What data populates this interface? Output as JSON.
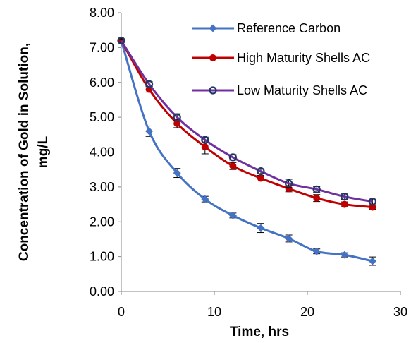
{
  "chart_data": {
    "type": "line",
    "title": "",
    "xlabel": "Time, hrs",
    "ylabel_lines": [
      "Concentration of Gold in Solution,",
      "mg/L"
    ],
    "xlim": [
      0,
      30
    ],
    "ylim": [
      0,
      8
    ],
    "xticks": [
      0,
      10,
      20,
      30
    ],
    "yticks": [
      0,
      1,
      2,
      3,
      4,
      5,
      6,
      7,
      8
    ],
    "ytick_labels": [
      "0.00",
      "1.00",
      "2.00",
      "3.00",
      "4.00",
      "5.00",
      "6.00",
      "7.00",
      "8.00"
    ],
    "grid": false,
    "legend_position": "top-right",
    "x": [
      0,
      3,
      6,
      9,
      12,
      15,
      18,
      21,
      24,
      27
    ],
    "series": [
      {
        "name": "Reference Carbon",
        "color": "#4472C4",
        "marker": "diamond",
        "values": [
          7.2,
          4.6,
          3.4,
          2.65,
          2.18,
          1.82,
          1.52,
          1.15,
          1.05,
          0.87
        ],
        "errors": [
          0.05,
          0.15,
          0.13,
          0.08,
          0.07,
          0.13,
          0.1,
          0.07,
          0.06,
          0.12
        ]
      },
      {
        "name": "High Maturity Shells AC",
        "color": "#C00000",
        "marker": "circle",
        "values": [
          7.2,
          5.8,
          4.82,
          4.15,
          3.6,
          3.25,
          2.95,
          2.68,
          2.5,
          2.42
        ],
        "errors": [
          0.05,
          0.08,
          0.12,
          0.2,
          0.1,
          0.08,
          0.09,
          0.1,
          0.07,
          0.06
        ]
      },
      {
        "name": "Low Maturity Shells AC",
        "color": "#7030A0",
        "marker": "open-circle",
        "values": [
          7.2,
          5.95,
          5.0,
          4.35,
          3.85,
          3.45,
          3.1,
          2.93,
          2.72,
          2.58
        ],
        "errors": [
          0.05,
          0.07,
          0.1,
          0.08,
          0.08,
          0.07,
          0.12,
          0.08,
          0.08,
          0.07
        ]
      }
    ]
  }
}
